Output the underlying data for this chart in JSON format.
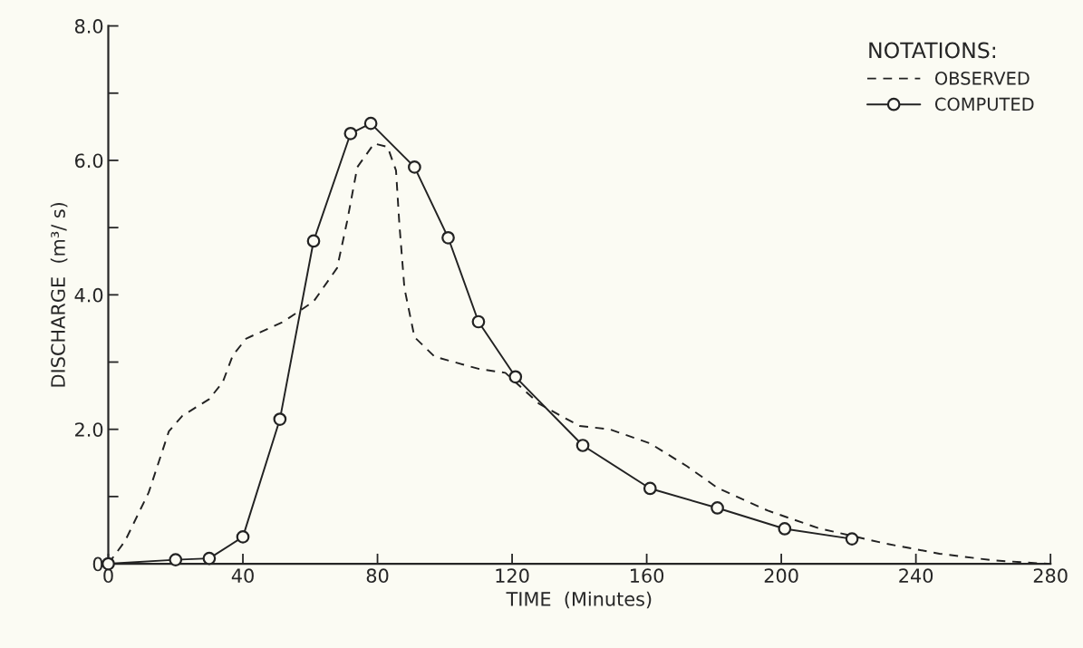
{
  "chart_data": {
    "type": "line",
    "xlabel": "TIME  (Minutes)",
    "ylabel": "DISCHARGE  (m³/ s)",
    "legend_title": "NOTATIONS:",
    "legend": "top right",
    "grid": false,
    "xlim": [
      0,
      280
    ],
    "xticks": [
      0,
      40,
      80,
      120,
      160,
      200,
      240,
      280
    ],
    "ylim": [
      0,
      8
    ],
    "yticks": [
      {
        "value": 0,
        "label": "0"
      },
      {
        "value": 1,
        "label": null
      },
      {
        "value": 2,
        "label": "2.0"
      },
      {
        "value": 3,
        "label": null
      },
      {
        "value": 4,
        "label": "4.0"
      },
      {
        "value": 5,
        "label": null
      },
      {
        "value": 6,
        "label": "6.0"
      },
      {
        "value": 7,
        "label": null
      },
      {
        "value": 8,
        "label": "8.0"
      }
    ],
    "series": [
      {
        "name": "OBSERVED",
        "color": "#222222",
        "line_style": "dashed",
        "marker": "none",
        "x": [
          0,
          5,
          12,
          18,
          22,
          30,
          34,
          37,
          41,
          52,
          61,
          68,
          71,
          74,
          79,
          83,
          85.5,
          86.5,
          88,
          91,
          97,
          110,
          118,
          128,
          140,
          149,
          161,
          172,
          181,
          196,
          211,
          231,
          247,
          263,
          279
        ],
        "values": [
          0,
          0.34,
          1.06,
          1.97,
          2.2,
          2.45,
          2.7,
          3.1,
          3.35,
          3.6,
          3.9,
          4.4,
          5.1,
          5.9,
          6.25,
          6.2,
          5.85,
          5.05,
          4.1,
          3.37,
          3.08,
          2.9,
          2.84,
          2.38,
          2.05,
          2.0,
          1.79,
          1.45,
          1.13,
          0.79,
          0.53,
          0.3,
          0.15,
          0.05,
          0
        ]
      },
      {
        "name": "COMPUTED",
        "color": "#222222",
        "line_style": "solid",
        "marker": "circle",
        "x": [
          0,
          20,
          30,
          40,
          51,
          61,
          72,
          78,
          91,
          101,
          110,
          121,
          141,
          161,
          181,
          201,
          221
        ],
        "values": [
          0,
          0.06,
          0.08,
          0.4,
          2.15,
          4.8,
          6.4,
          6.55,
          5.9,
          4.85,
          3.6,
          2.78,
          1.76,
          1.12,
          0.83,
          0.52,
          0.37
        ]
      }
    ]
  }
}
